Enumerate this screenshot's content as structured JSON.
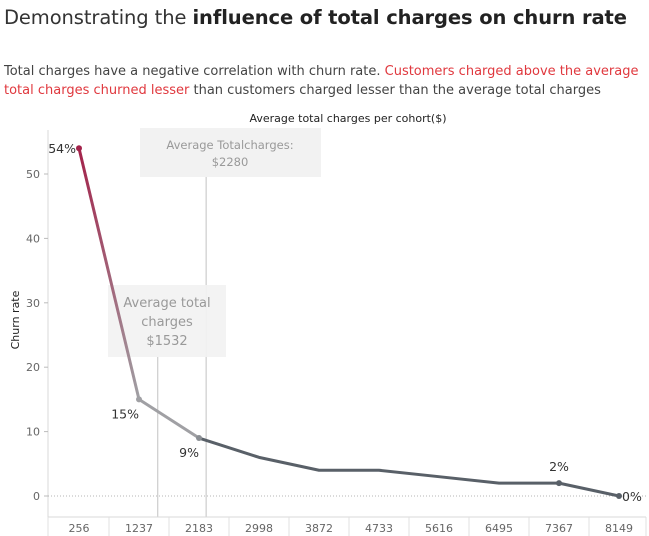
{
  "title": {
    "plain": "Demonstrating the ",
    "bold": "influence of total charges on churn rate"
  },
  "subtitle": {
    "plain1": "Total charges have a negative correlation with churn rate. ",
    "highlight": "Customers charged above the average total charges churned lesser",
    "plain2": "  than customers charged lesser than the average total charges"
  },
  "chart_data": {
    "type": "line",
    "title": "Average total charges per cohort($)",
    "xlabel": "Average total charges per cohort($)",
    "ylabel": "Churn rate",
    "categories": [
      "256",
      "1237",
      "2183",
      "2998",
      "3872",
      "4733",
      "5616",
      "6495",
      "7367",
      "8149"
    ],
    "values": [
      54,
      15,
      9,
      6,
      4,
      4,
      3,
      2,
      2,
      0
    ],
    "yticks": [
      0,
      10,
      20,
      30,
      40,
      50
    ],
    "ylim": [
      -3,
      57
    ],
    "grid": false,
    "data_labels": [
      {
        "index": 0,
        "text": "54%"
      },
      {
        "index": 1,
        "text": "15%"
      },
      {
        "index": 2,
        "text": "9%"
      },
      {
        "index": 8,
        "text": "2%"
      },
      {
        "index": 9,
        "text": "0%"
      }
    ],
    "reference_lines": [
      {
        "value": 1532,
        "label_lines": [
          "Average total",
          "charges",
          "$1532"
        ]
      },
      {
        "value": 2280,
        "label_lines": [
          "Average Totalcharges:",
          "$2280"
        ]
      }
    ],
    "colors": {
      "gradient_start": "#a3224a",
      "gradient_mid": "#a0a0a4",
      "line_main": "#596068",
      "ref_line": "#cccccc",
      "annotation_box": "#f2f2f2"
    }
  }
}
